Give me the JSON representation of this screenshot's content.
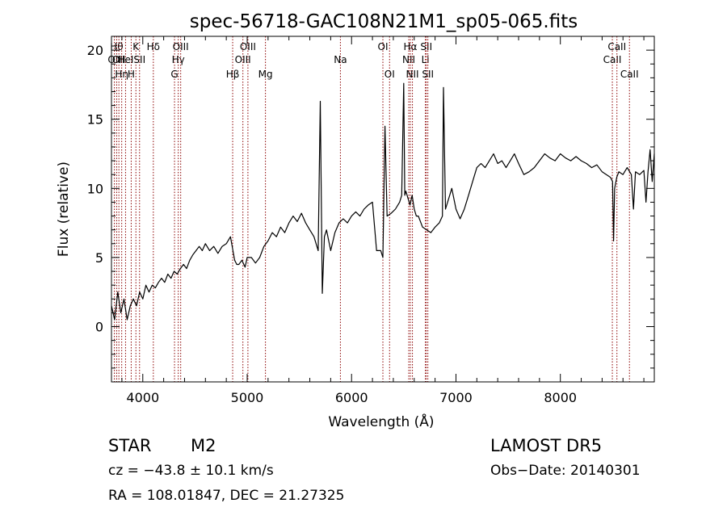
{
  "chart_data": {
    "type": "line",
    "title": "spec-56718-GAC108N21M1_sp05-065.fits",
    "xlabel": "Wavelength (Å)",
    "ylabel": "Flux (relative)",
    "xlim": [
      3700,
      8900
    ],
    "ylim": [
      -4,
      21
    ],
    "xticks": [
      4000,
      5000,
      6000,
      7000,
      8000
    ],
    "yticks": [
      0,
      5,
      10,
      15,
      20
    ],
    "grid": false,
    "line_color": "#000000",
    "marker_color": "#8b0000",
    "series": [
      {
        "x": [
          3700,
          3730,
          3760,
          3790,
          3820,
          3850,
          3880,
          3910,
          3940,
          3970,
          4000,
          4030,
          4060,
          4090,
          4120,
          4150,
          4180,
          4210,
          4240,
          4270,
          4300,
          4330,
          4360,
          4390,
          4420,
          4450,
          4480,
          4510,
          4540,
          4570,
          4600,
          4640,
          4680,
          4720,
          4760,
          4800,
          4840,
          4880,
          4900,
          4920,
          4950,
          4980,
          5000,
          5040,
          5080,
          5120,
          5160,
          5200,
          5240,
          5280,
          5320,
          5360,
          5400,
          5440,
          5480,
          5520,
          5560,
          5600,
          5640,
          5680,
          5700,
          5720,
          5740,
          5760,
          5800,
          5840,
          5880,
          5920,
          5960,
          6000,
          6040,
          6080,
          6120,
          6160,
          6200,
          6240,
          6280,
          6300,
          6320,
          6340,
          6380,
          6420,
          6460,
          6480,
          6500,
          6510,
          6520,
          6540,
          6560,
          6580,
          6600,
          6620,
          6640,
          6680,
          6720,
          6760,
          6800,
          6840,
          6870,
          6880,
          6900,
          6920,
          6940,
          6960,
          7000,
          7040,
          7080,
          7120,
          7160,
          7200,
          7240,
          7280,
          7320,
          7360,
          7400,
          7440,
          7480,
          7520,
          7560,
          7600,
          7650,
          7700,
          7750,
          7800,
          7850,
          7900,
          7950,
          8000,
          8050,
          8100,
          8150,
          8200,
          8250,
          8300,
          8350,
          8400,
          8440,
          8480,
          8500,
          8510,
          8520,
          8540,
          8560,
          8600,
          8640,
          8680,
          8700,
          8720,
          8760,
          8800,
          8820,
          8840,
          8860,
          8880,
          8900
        ],
        "y": [
          1.5,
          0.5,
          2.5,
          1.0,
          2.0,
          0.5,
          1.5,
          2.0,
          1.5,
          2.5,
          2.0,
          3.0,
          2.5,
          3.0,
          2.8,
          3.2,
          3.5,
          3.2,
          3.8,
          3.5,
          4.0,
          3.8,
          4.2,
          4.5,
          4.2,
          4.8,
          5.2,
          5.5,
          5.8,
          5.5,
          6.0,
          5.5,
          5.8,
          5.3,
          5.8,
          6.0,
          6.5,
          4.8,
          4.5,
          4.5,
          4.8,
          4.3,
          5.0,
          5.0,
          4.6,
          5.0,
          5.8,
          6.2,
          6.8,
          6.5,
          7.2,
          6.8,
          7.5,
          8.0,
          7.6,
          8.2,
          7.5,
          7.0,
          6.5,
          5.5,
          16.3,
          2.4,
          6.5,
          7.0,
          5.5,
          6.8,
          7.5,
          7.8,
          7.5,
          8.0,
          8.3,
          8.0,
          8.5,
          8.8,
          9.0,
          5.5,
          5.5,
          5.0,
          14.5,
          8.0,
          8.2,
          8.5,
          9.0,
          9.5,
          17.6,
          9.5,
          9.8,
          9.3,
          8.8,
          9.5,
          8.5,
          8.0,
          8.0,
          7.2,
          7.0,
          6.8,
          7.2,
          7.5,
          8.0,
          17.3,
          8.5,
          9.0,
          9.5,
          10.0,
          8.5,
          7.8,
          8.5,
          9.5,
          10.5,
          11.5,
          11.8,
          11.5,
          12.0,
          12.5,
          11.8,
          12.0,
          11.5,
          12.0,
          12.5,
          11.8,
          11.0,
          11.2,
          11.5,
          12.0,
          12.5,
          12.2,
          12.0,
          12.5,
          12.2,
          12.0,
          12.3,
          12.0,
          11.8,
          11.5,
          11.7,
          11.2,
          11.0,
          10.8,
          10.5,
          6.2,
          10.0,
          10.8,
          11.2,
          11.0,
          11.5,
          11.0,
          8.5,
          11.2,
          11.0,
          11.3,
          9.0,
          11.2,
          12.8,
          10.5,
          12.5
        ]
      }
    ],
    "lines": [
      {
        "x": 3728,
        "label": "OII",
        "row": 2
      },
      {
        "x": 3750,
        "label": "Hθ",
        "row": 1
      },
      {
        "x": 3771,
        "label": "OII",
        "row": 2
      },
      {
        "x": 3798,
        "label": "Hη",
        "row": 3
      },
      {
        "x": 3835,
        "label": "HeI",
        "row": 2
      },
      {
        "x": 3889,
        "label": "H",
        "row": 3
      },
      {
        "x": 3934,
        "label": "K",
        "row": 1
      },
      {
        "x": 3969,
        "label": "SII",
        "row": 2
      },
      {
        "x": 4101,
        "label": "Hδ",
        "row": 1
      },
      {
        "x": 4304,
        "label": "G",
        "row": 3
      },
      {
        "x": 4340,
        "label": "Hγ",
        "row": 2
      },
      {
        "x": 4363,
        "label": "OIII",
        "row": 1
      },
      {
        "x": 4861,
        "label": "Hβ",
        "row": 3
      },
      {
        "x": 4959,
        "label": "OIII",
        "row": 2
      },
      {
        "x": 5007,
        "label": "OIII",
        "row": 1
      },
      {
        "x": 5175,
        "label": "Mg",
        "row": 3
      },
      {
        "x": 5893,
        "label": "Na",
        "row": 2
      },
      {
        "x": 6300,
        "label": "OI",
        "row": 1
      },
      {
        "x": 6364,
        "label": "OI",
        "row": 3
      },
      {
        "x": 6548,
        "label": "NII",
        "row": 2
      },
      {
        "x": 6563,
        "label": "Hα",
        "row": 1
      },
      {
        "x": 6583,
        "label": "NII",
        "row": 3
      },
      {
        "x": 6707,
        "label": "Li",
        "row": 2
      },
      {
        "x": 6716,
        "label": "SII",
        "row": 1
      },
      {
        "x": 6731,
        "label": "SII",
        "row": 3
      },
      {
        "x": 8498,
        "label": "CaII",
        "row": 2
      },
      {
        "x": 8542,
        "label": "CaII",
        "row": 1
      },
      {
        "x": 8662,
        "label": "CaII",
        "row": 3
      }
    ]
  },
  "info": {
    "object_class": "STAR",
    "subclass": "M2",
    "cz": "cz = −43.8 ± 10.1 km/s",
    "coords": "RA = 108.01847, DEC =  21.27325",
    "survey": "LAMOST  DR5",
    "obs_date": "Obs−Date: 20140301"
  }
}
